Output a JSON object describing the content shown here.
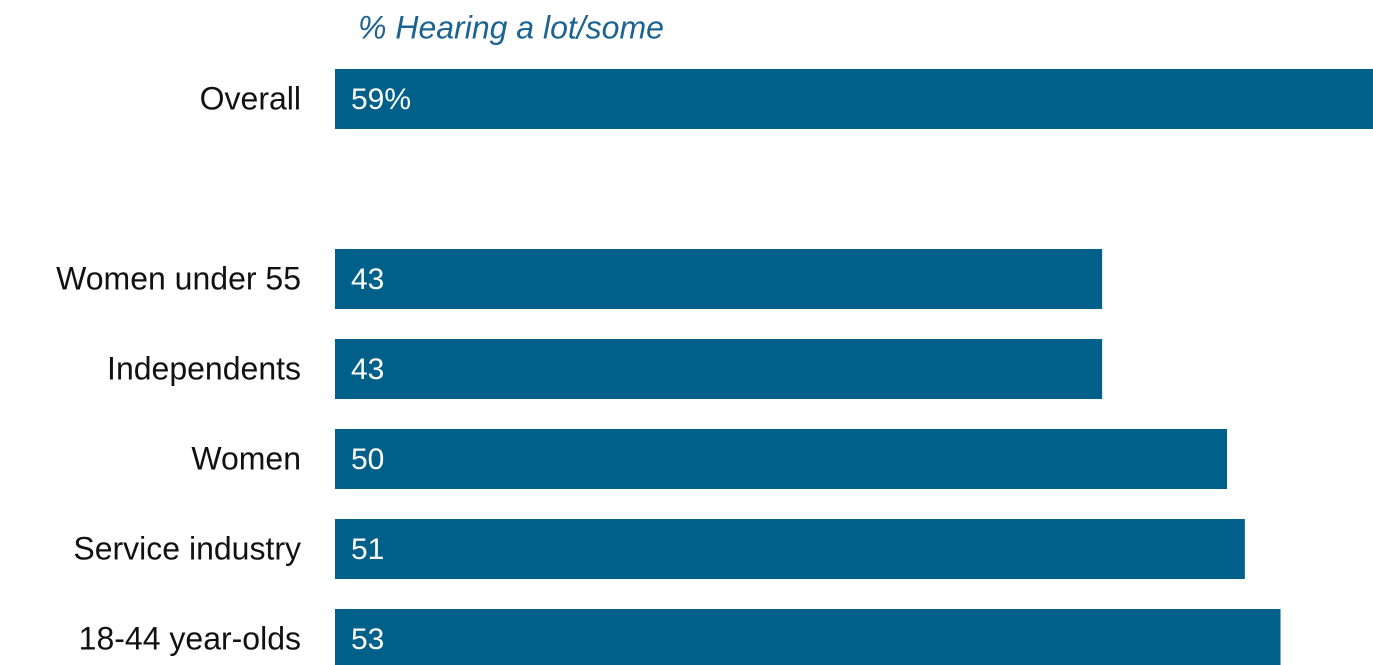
{
  "chart_data": {
    "type": "bar",
    "orientation": "horizontal",
    "title": "% Hearing a lot/some",
    "categories": [
      "Overall",
      "Women under 55",
      "Independents",
      "Women",
      "Service industry",
      "18-44 year-olds"
    ],
    "values": [
      59,
      43,
      43,
      50,
      51,
      53
    ],
    "value_labels": [
      "59%",
      "43",
      "43",
      "50",
      "51",
      "53"
    ],
    "color": "#00608a"
  }
}
